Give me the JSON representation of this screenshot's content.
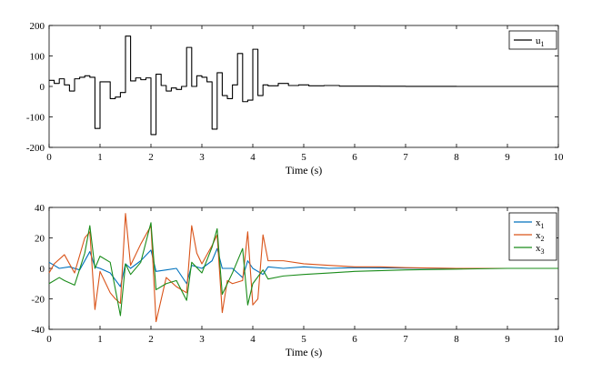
{
  "chart_data": [
    {
      "type": "line",
      "step": true,
      "xlabel": "Time (s)",
      "ylabel": "",
      "xlim": [
        0,
        10
      ],
      "ylim": [
        -200,
        200
      ],
      "xticks": [
        0,
        1,
        2,
        3,
        4,
        5,
        6,
        7,
        8,
        9,
        10
      ],
      "yticks": [
        -200,
        -100,
        0,
        100,
        200
      ],
      "legend_position": "top-right",
      "series": [
        {
          "name": "u",
          "name_sub": "1",
          "color": "#000000",
          "x": [
            0,
            0.1,
            0.2,
            0.3,
            0.4,
            0.5,
            0.6,
            0.7,
            0.8,
            0.9,
            1.0,
            1.1,
            1.2,
            1.3,
            1.4,
            1.5,
            1.6,
            1.7,
            1.8,
            1.9,
            2.0,
            2.1,
            2.2,
            2.3,
            2.4,
            2.5,
            2.6,
            2.7,
            2.8,
            2.9,
            3.0,
            3.1,
            3.2,
            3.3,
            3.4,
            3.5,
            3.6,
            3.7,
            3.8,
            3.9,
            4.0,
            4.1,
            4.2,
            4.3,
            4.5,
            4.7,
            4.9,
            5.1,
            5.4,
            5.7,
            6.0,
            6.5,
            7.0,
            8.0,
            9.0,
            10.0
          ],
          "y": [
            20,
            10,
            25,
            5,
            -15,
            25,
            30,
            35,
            30,
            -138,
            15,
            15,
            -40,
            -35,
            -20,
            165,
            18,
            28,
            22,
            28,
            -158,
            40,
            3,
            -15,
            -5,
            -10,
            0,
            128,
            0,
            35,
            30,
            15,
            -140,
            45,
            -30,
            -40,
            5,
            108,
            -50,
            -45,
            122,
            -30,
            5,
            2,
            10,
            3,
            5,
            2,
            3,
            1,
            1,
            0.5,
            0.2,
            0,
            0,
            0
          ]
        }
      ]
    },
    {
      "type": "line",
      "xlabel": "Time (s)",
      "ylabel": "",
      "xlim": [
        0,
        10
      ],
      "ylim": [
        -40,
        40
      ],
      "xticks": [
        0,
        1,
        2,
        3,
        4,
        5,
        6,
        7,
        8,
        9,
        10
      ],
      "yticks": [
        -40,
        -20,
        0,
        20,
        40
      ],
      "legend_position": "top-right",
      "series": [
        {
          "name": "x",
          "name_sub": "1",
          "color": "#0072BD",
          "x": [
            0,
            0.2,
            0.4,
            0.6,
            0.8,
            0.9,
            1.0,
            1.2,
            1.4,
            1.5,
            1.6,
            1.8,
            2.0,
            2.1,
            2.3,
            2.5,
            2.7,
            2.8,
            3.0,
            3.2,
            3.3,
            3.4,
            3.6,
            3.8,
            3.9,
            4.0,
            4.2,
            4.3,
            4.6,
            5.0,
            5.5,
            6.0,
            7.0,
            8.0,
            9.0,
            10.0
          ],
          "y": [
            4,
            0,
            1,
            -1,
            11,
            1,
            0,
            -3,
            -12,
            3,
            0,
            5,
            12,
            -2,
            -1,
            0,
            -10,
            2,
            0,
            5,
            13,
            0,
            0,
            -6,
            5,
            0,
            -4,
            1,
            0,
            1,
            0,
            0.5,
            0.2,
            0,
            0,
            0
          ]
        },
        {
          "name": "x",
          "name_sub": "2",
          "color": "#D95319",
          "x": [
            0,
            0.1,
            0.3,
            0.5,
            0.7,
            0.8,
            0.9,
            1.0,
            1.2,
            1.3,
            1.4,
            1.5,
            1.6,
            1.8,
            2.0,
            2.1,
            2.3,
            2.5,
            2.7,
            2.8,
            2.9,
            3.0,
            3.2,
            3.3,
            3.4,
            3.5,
            3.6,
            3.8,
            3.9,
            4.0,
            4.1,
            4.2,
            4.3,
            4.6,
            5.0,
            5.5,
            6.0,
            6.5,
            7.0,
            8.0,
            9.0,
            10.0
          ],
          "y": [
            -3,
            3,
            9,
            -3,
            20,
            24,
            -27,
            -2,
            -16,
            -20,
            -23,
            36,
            2,
            16,
            28,
            -35,
            -6,
            -12,
            -16,
            28,
            10,
            3,
            15,
            22,
            -29,
            -8,
            -10,
            -8,
            24,
            -24,
            -20,
            22,
            5,
            5,
            3,
            2,
            1,
            1,
            0.5,
            0,
            0,
            0
          ]
        },
        {
          "name": "x",
          "name_sub": "3",
          "color": "#1A8C1A",
          "x": [
            0,
            0.2,
            0.3,
            0.5,
            0.7,
            0.8,
            0.9,
            1.0,
            1.2,
            1.4,
            1.5,
            1.6,
            1.8,
            2.0,
            2.1,
            2.3,
            2.5,
            2.7,
            2.8,
            3.0,
            3.2,
            3.3,
            3.4,
            3.6,
            3.8,
            3.9,
            4.0,
            4.2,
            4.3,
            4.6,
            5.0,
            5.5,
            6.0,
            7.0,
            8.0,
            9.0,
            10.0
          ],
          "y": [
            -10,
            -6,
            -8,
            -11,
            10,
            28,
            0,
            8,
            4,
            -31,
            3,
            -4,
            4,
            30,
            -14,
            -10,
            -8,
            -21,
            4,
            -3,
            14,
            26,
            -17,
            -3,
            13,
            -24,
            -10,
            -1,
            -7,
            -5,
            -4,
            -3,
            -2,
            -1,
            -0.5,
            0,
            0
          ]
        }
      ]
    }
  ]
}
